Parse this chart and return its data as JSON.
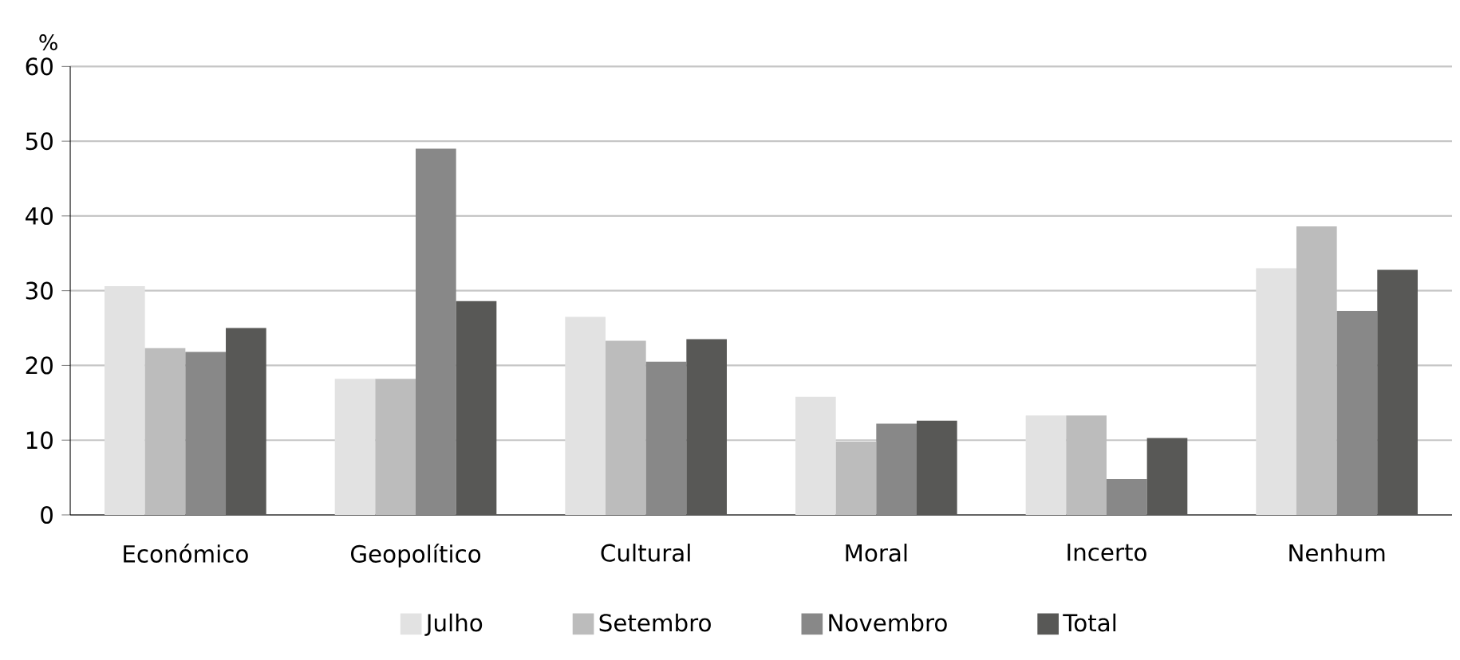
{
  "chart_data": {
    "type": "bar",
    "ylabel": "%",
    "categories": [
      "Económico",
      "Geopolítico",
      "Cultural",
      "Moral",
      "Incerto",
      "Nenhum"
    ],
    "series": [
      {
        "name": "Julho",
        "color": "#e2e2e2",
        "values": [
          30.6,
          18.2,
          26.5,
          15.8,
          13.3,
          33.0
        ]
      },
      {
        "name": "Setembro",
        "color": "#bcbcbc",
        "values": [
          22.3,
          18.2,
          23.3,
          9.8,
          13.3,
          38.6
        ]
      },
      {
        "name": "Novembro",
        "color": "#888888",
        "values": [
          21.8,
          49.0,
          20.5,
          12.2,
          4.8,
          27.3
        ]
      },
      {
        "name": "Total",
        "color": "#585856",
        "values": [
          25.0,
          28.6,
          23.5,
          12.6,
          10.3,
          32.8
        ]
      }
    ],
    "ylim": [
      0,
      60
    ],
    "yticks": [
      0,
      10,
      20,
      30,
      40,
      50,
      60
    ],
    "grid": "y",
    "legend": "bottom"
  }
}
